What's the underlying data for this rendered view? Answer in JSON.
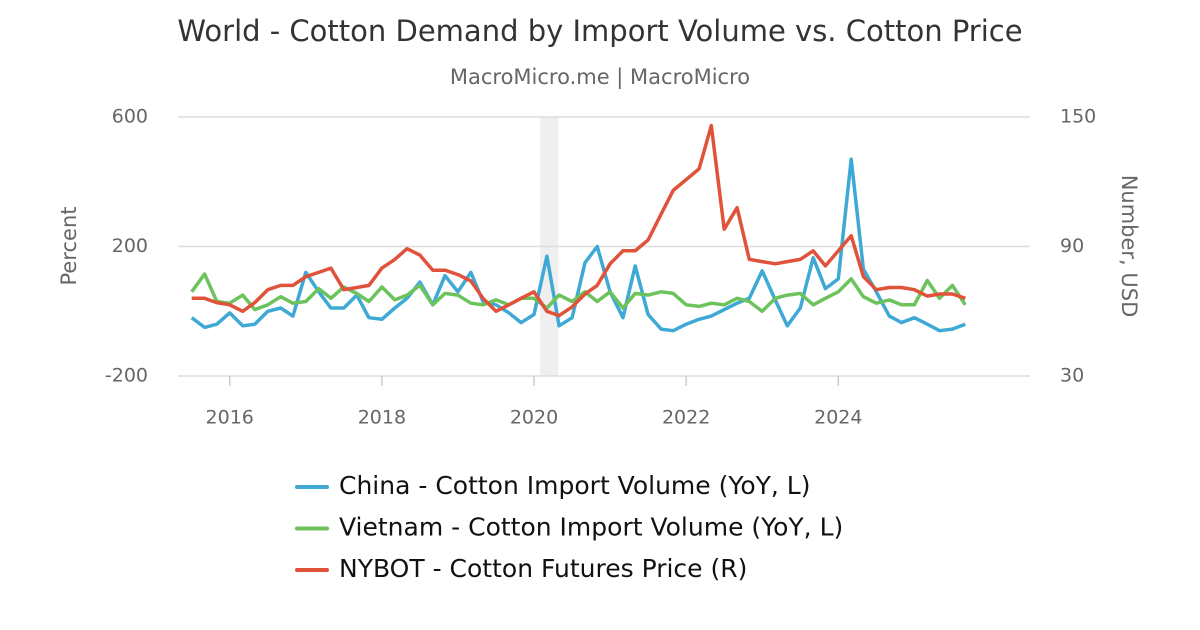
{
  "chart_data": {
    "type": "line",
    "title": "World - Cotton Demand by Import Volume vs. Cotton Price",
    "subtitle": "MacroMicro.me | MacroMicro",
    "y_label": "Percent",
    "y2_label": "Number, USD",
    "x": [
      2015.5,
      2015.67,
      2015.83,
      2016,
      2016.17,
      2016.33,
      2016.5,
      2016.67,
      2016.83,
      2017,
      2017.17,
      2017.33,
      2017.5,
      2017.67,
      2017.83,
      2018,
      2018.17,
      2018.33,
      2018.5,
      2018.67,
      2018.83,
      2019,
      2019.17,
      2019.33,
      2019.5,
      2019.67,
      2019.83,
      2020,
      2020.17,
      2020.33,
      2020.5,
      2020.67,
      2020.83,
      2021,
      2021.17,
      2021.33,
      2021.5,
      2021.67,
      2021.83,
      2022,
      2022.17,
      2022.33,
      2022.5,
      2022.67,
      2022.83,
      2023,
      2023.17,
      2023.33,
      2023.5,
      2023.67,
      2023.83,
      2024,
      2024.17,
      2024.33,
      2024.5,
      2024.67,
      2024.83,
      2025,
      2025.17,
      2025.33,
      2025.5,
      2025.67
    ],
    "series": [
      {
        "name": "China - Cotton Import Volume (YoY, L)",
        "color": "#3fa9d6",
        "axis": "y",
        "values": [
          -20,
          -50,
          -40,
          -5,
          -45,
          -40,
          0,
          10,
          -15,
          120,
          60,
          10,
          10,
          50,
          -20,
          -25,
          10,
          40,
          90,
          20,
          110,
          60,
          120,
          30,
          20,
          -5,
          -35,
          -10,
          170,
          -45,
          -20,
          150,
          200,
          60,
          -20,
          140,
          -10,
          -55,
          -60,
          -40,
          -25,
          -15,
          5,
          25,
          40,
          125,
          35,
          -45,
          10,
          165,
          70,
          100,
          470,
          130,
          60,
          -15,
          -35,
          -20,
          -40,
          -60,
          -55,
          -40
        ]
      },
      {
        "name": "Vietnam - Cotton Import Volume (YoY, L)",
        "color": "#6cc35c",
        "axis": "y",
        "values": [
          60,
          115,
          30,
          25,
          50,
          5,
          20,
          45,
          25,
          30,
          70,
          40,
          75,
          55,
          30,
          75,
          35,
          50,
          80,
          20,
          55,
          50,
          25,
          20,
          35,
          20,
          40,
          40,
          10,
          50,
          30,
          60,
          30,
          60,
          10,
          55,
          50,
          60,
          55,
          20,
          15,
          25,
          20,
          40,
          30,
          0,
          40,
          50,
          55,
          20,
          40,
          60,
          100,
          45,
          25,
          35,
          20,
          20,
          95,
          40,
          80,
          20
        ]
      },
      {
        "name": "NYBOT - Cotton Futures Price (R)",
        "color": "#e0523a",
        "axis": "y2",
        "values": [
          66,
          66,
          64,
          63,
          60,
          64,
          70,
          72,
          72,
          76,
          78,
          80,
          70,
          71,
          72,
          80,
          84,
          89,
          86,
          79,
          79,
          77,
          74,
          66,
          60,
          63,
          66,
          69,
          60,
          58,
          62,
          68,
          72,
          82,
          88,
          88,
          93,
          105,
          116,
          121,
          126,
          146,
          98,
          108,
          84,
          83,
          82,
          83,
          84,
          88,
          81,
          88,
          95,
          76,
          70,
          71,
          71,
          70,
          67,
          68,
          68,
          66
        ]
      }
    ],
    "shaded_x": [
      2020.08,
      2020.32
    ],
    "xlim": [
      2015.32,
      2026.52
    ],
    "xticks": [
      2016,
      2018,
      2020,
      2022,
      2024
    ],
    "ylim": [
      -200,
      600
    ],
    "yticks": [
      -200,
      200,
      600
    ],
    "y2lim": [
      30,
      150
    ],
    "y2ticks": [
      30,
      90,
      150
    ],
    "grid": true
  }
}
